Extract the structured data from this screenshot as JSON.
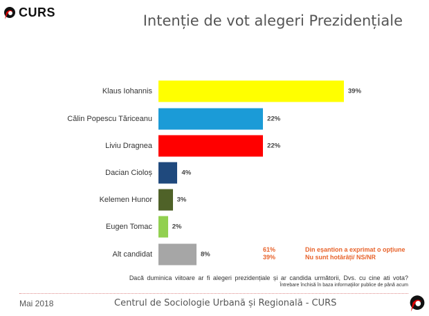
{
  "header": {
    "logo_text": "CURS",
    "title": "Intenție de vot alegeri Prezidențiale"
  },
  "chart_data": {
    "type": "bar",
    "orientation": "horizontal",
    "title": "Intenție de vot alegeri Prezidențiale",
    "categories": [
      "Klaus Iohannis",
      "Călin Popescu Tăriceanu",
      "Liviu Dragnea",
      "Dacian Cioloș",
      "Kelemen Hunor",
      "Eugen Tomac",
      "Alt candidat"
    ],
    "values": [
      39,
      22,
      22,
      4,
      3,
      2,
      8
    ],
    "labels": [
      "39%",
      "22%",
      "22%",
      "4%",
      "3%",
      "2%",
      "8%"
    ],
    "colors": [
      "#ffff00",
      "#1b9bd7",
      "#ff0000",
      "#1f497d",
      "#4f6228",
      "#92d050",
      "#a6a6a6"
    ],
    "xlim": [
      0,
      39
    ],
    "unit": "%",
    "grid": false
  },
  "notes": [
    {
      "value": "61%",
      "text": "Din eșantion a exprimat o opțiune"
    },
    {
      "value": "39%",
      "text": "Nu sunt hotărâți/ NS/NR"
    }
  ],
  "question": "Dacă duminica viitoare ar fi alegeri prezidențiale  și ar candida următorii,  Dvs.  cu cine ati vota?",
  "question_note": "Întrebare închisă în baza informaţiilor publice de până acum",
  "footer": {
    "date": "Mai 2018",
    "org": "Centrul de Sociologie Urbană și Regională - CURS"
  }
}
